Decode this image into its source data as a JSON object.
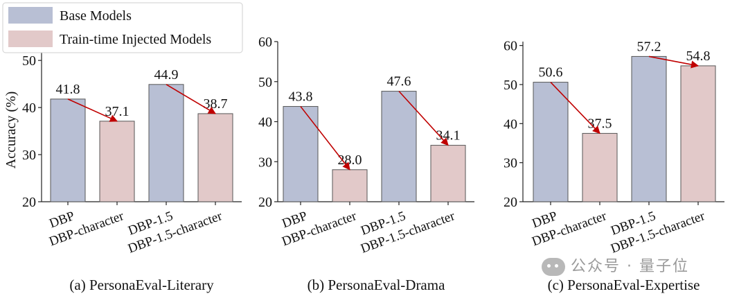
{
  "legend": {
    "items": [
      {
        "label": "Base Models",
        "color": "#b8bfd4"
      },
      {
        "label": "Train-time Injected Models",
        "color": "#e2c9c9"
      }
    ]
  },
  "watermark": {
    "text": "公众号 · 量子位",
    "icon": "wechat-icon"
  },
  "colors": {
    "arrow": "#c00000",
    "bar_edge": "#555555"
  },
  "chart_data": [
    {
      "type": "bar",
      "caption": "(a) PersonaEval-Literary",
      "ylabel": "Accuracy (%)",
      "ylim": [
        20,
        54
      ],
      "yticks": [
        20,
        30,
        40,
        50
      ],
      "categories": [
        "DBP",
        "DBP-character",
        "DBP-1.5",
        "DBP-1.5-character"
      ],
      "values": [
        41.8,
        37.1,
        44.9,
        38.7
      ],
      "groups": [
        "Base Models",
        "Train-time Injected Models",
        "Base Models",
        "Train-time Injected Models"
      ],
      "arrows": [
        [
          0,
          1
        ],
        [
          2,
          3
        ]
      ]
    },
    {
      "type": "bar",
      "caption": "(b) PersonaEval-Drama",
      "ylabel": "",
      "ylim": [
        20,
        60
      ],
      "yticks": [
        20,
        30,
        40,
        50,
        60
      ],
      "categories": [
        "DBP",
        "DBP-character",
        "DBP-1.5",
        "DBP-1.5-character"
      ],
      "values": [
        43.8,
        28.0,
        47.6,
        34.1
      ],
      "groups": [
        "Base Models",
        "Train-time Injected Models",
        "Base Models",
        "Train-time Injected Models"
      ],
      "arrows": [
        [
          0,
          1
        ],
        [
          2,
          3
        ]
      ]
    },
    {
      "type": "bar",
      "caption": "(c) PersonaEval-Expertise",
      "ylabel": "",
      "ylim": [
        20,
        61
      ],
      "yticks": [
        20,
        30,
        40,
        50,
        60
      ],
      "categories": [
        "DBP",
        "DBP-character",
        "DBP-1.5",
        "DBP-1.5-character"
      ],
      "values": [
        50.6,
        37.5,
        57.2,
        54.8
      ],
      "groups": [
        "Base Models",
        "Train-time Injected Models",
        "Base Models",
        "Train-time Injected Models"
      ],
      "arrows": [
        [
          0,
          1
        ],
        [
          2,
          3
        ]
      ]
    }
  ]
}
